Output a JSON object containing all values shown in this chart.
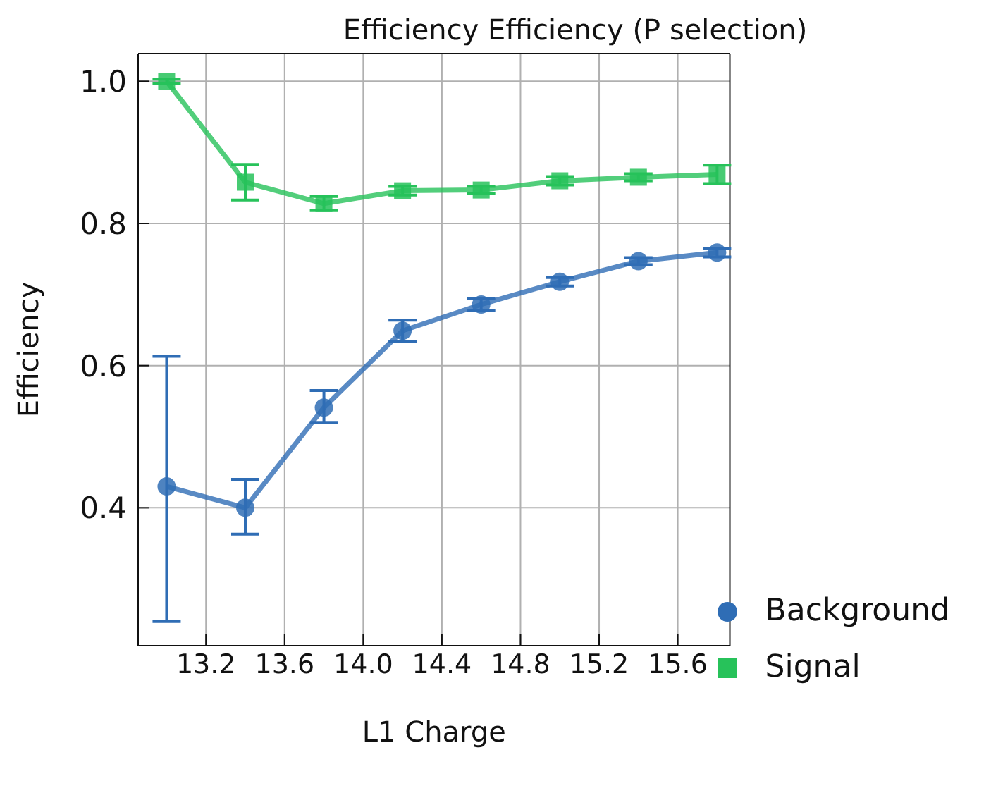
{
  "chart_data": {
    "type": "line",
    "title": "Efficiency Efficiency (P selection)",
    "xlabel": "L1 Charge",
    "ylabel": "Efficiency",
    "x": [
      13.0,
      13.4,
      13.8,
      14.2,
      14.6,
      15.0,
      15.4,
      15.8
    ],
    "series": [
      {
        "name": "Background",
        "color": "#2f6db5",
        "marker": "circle",
        "values": [
          0.43,
          0.4,
          0.541,
          0.649,
          0.686,
          0.718,
          0.747,
          0.759
        ],
        "errors": [
          [
            0.24,
            0.613
          ],
          [
            0.363,
            0.44
          ],
          [
            0.52,
            0.565
          ],
          0.015,
          0.008,
          0.006,
          0.005,
          0.006
        ]
      },
      {
        "name": "Signal",
        "color": "#27c25a",
        "marker": "square",
        "values": [
          1.0,
          0.858,
          0.828,
          0.846,
          0.847,
          0.86,
          0.865,
          0.869
        ],
        "errors": [
          0.003,
          0.025,
          0.01,
          0.006,
          0.005,
          0.006,
          0.005,
          0.013
        ]
      }
    ],
    "xlim": [
      12.855,
      15.865
    ],
    "xticks": [
      {
        "value": 13.2,
        "label": "13.2"
      },
      {
        "value": 13.6,
        "label": "13.6"
      },
      {
        "value": 14.0,
        "label": "14.0"
      },
      {
        "value": 14.4,
        "label": "14.4"
      },
      {
        "value": 14.8,
        "label": "14.8"
      },
      {
        "value": 15.2,
        "label": "15.2"
      },
      {
        "value": 15.6,
        "label": "15.6"
      }
    ],
    "ylim": [
      0.206,
      1.039
    ],
    "yticks": [
      {
        "value": 0.4,
        "label": "0.4"
      },
      {
        "value": 0.6,
        "label": "0.6"
      },
      {
        "value": 0.8,
        "label": "0.8"
      },
      {
        "value": 1.0,
        "label": "1.0"
      }
    ],
    "grid": true,
    "legend": "bottom right",
    "line_style": "solid"
  }
}
